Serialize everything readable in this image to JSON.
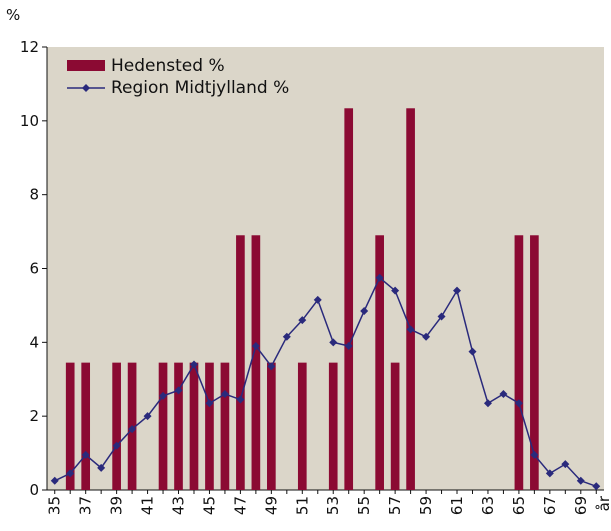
{
  "chart_data": {
    "type": "bar_line",
    "y_label": "%",
    "x_label": "år",
    "categories": [
      "35",
      null,
      "37",
      null,
      "39",
      null,
      "41",
      null,
      "43",
      null,
      "45",
      null,
      "47",
      null,
      "49",
      null,
      "51",
      null,
      "53",
      null,
      "55",
      null,
      "57",
      null,
      "59",
      null,
      "61",
      null,
      "63",
      null,
      "65",
      null,
      "67",
      null,
      "69",
      null
    ],
    "series": [
      {
        "name": "Hedensted %",
        "color": "#8b0a33",
        "kind": "bar",
        "values": [
          0,
          3.45,
          3.45,
          0,
          3.45,
          3.45,
          0,
          3.45,
          3.45,
          3.45,
          3.45,
          3.45,
          6.9,
          6.9,
          3.45,
          0,
          3.45,
          0,
          3.45,
          10.34,
          0,
          6.9,
          3.45,
          10.34,
          0,
          0,
          0,
          0,
          0,
          0,
          6.9,
          6.9,
          0,
          0,
          0,
          0
        ]
      },
      {
        "name": "Region Midtjylland %",
        "color": "#2a2a7c",
        "kind": "line",
        "values": [
          0.25,
          0.45,
          0.95,
          0.6,
          1.2,
          1.65,
          2.0,
          2.55,
          2.7,
          3.4,
          2.35,
          2.6,
          2.45,
          3.9,
          3.35,
          4.15,
          4.6,
          5.15,
          4.0,
          3.9,
          4.85,
          5.75,
          5.4,
          4.35,
          4.15,
          4.7,
          5.4,
          3.75,
          2.35,
          2.6,
          2.35,
          0.95,
          0.45,
          0.7,
          0.25,
          0.1
        ]
      }
    ],
    "ylim": [
      0,
      12
    ],
    "yticks": [
      0,
      2,
      4,
      6,
      8,
      10,
      12
    ],
    "background": "#dbd6c9"
  }
}
